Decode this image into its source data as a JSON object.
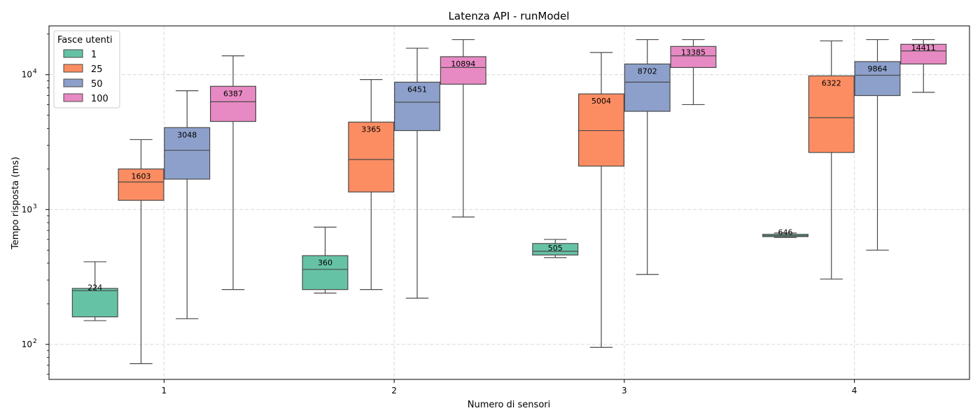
{
  "chart_data": {
    "type": "box",
    "title": "Latenza API - runModel",
    "xlabel": "Numero di sensori",
    "ylabel": "Tempo risposta (ms)",
    "yscale": "log",
    "ylim": [
      55,
      23000
    ],
    "ytick_labels": [
      {
        "value": 100,
        "base": "10",
        "exp": "2"
      },
      {
        "value": 1000,
        "base": "10",
        "exp": "3"
      },
      {
        "value": 10000,
        "base": "10",
        "exp": "4"
      }
    ],
    "categories": [
      "1",
      "2",
      "3",
      "4"
    ],
    "grid": true,
    "legend": {
      "title": "Fasce utenti",
      "placement": "top-left"
    },
    "series": [
      {
        "name": "1",
        "color": "#66c2a5",
        "boxes": [
          {
            "min": 150,
            "q1": 160,
            "median": 250,
            "q3": 260,
            "max": 410,
            "label": "224"
          },
          {
            "min": 240,
            "q1": 255,
            "median": 360,
            "q3": 455,
            "max": 740,
            "label": "360"
          },
          {
            "min": 440,
            "q1": 460,
            "median": 490,
            "q3": 560,
            "max": 600,
            "label": "505"
          },
          {
            "min": 620,
            "q1": 630,
            "median": 640,
            "q3": 655,
            "max": 670,
            "label": "646"
          }
        ]
      },
      {
        "name": "25",
        "color": "#fc8d62",
        "boxes": [
          {
            "min": 72,
            "q1": 1170,
            "median": 1600,
            "q3": 2000,
            "max": 3300,
            "label": "1603"
          },
          {
            "min": 255,
            "q1": 1350,
            "median": 2350,
            "q3": 4450,
            "max": 9200,
            "label": "3365"
          },
          {
            "min": 95,
            "q1": 2100,
            "median": 3850,
            "q3": 7200,
            "max": 14600,
            "label": "5004"
          },
          {
            "min": 305,
            "q1": 2650,
            "median": 4800,
            "q3": 9800,
            "max": 17800,
            "label": "6322"
          }
        ]
      },
      {
        "name": "50",
        "color": "#8da0cb",
        "boxes": [
          {
            "min": 155,
            "q1": 1680,
            "median": 2750,
            "q3": 4050,
            "max": 7600,
            "label": "3048"
          },
          {
            "min": 220,
            "q1": 3850,
            "median": 6250,
            "q3": 8800,
            "max": 15700,
            "label": "6451"
          },
          {
            "min": 330,
            "q1": 5350,
            "median": 8800,
            "q3": 12000,
            "max": 18200,
            "label": "8702"
          },
          {
            "min": 500,
            "q1": 7000,
            "median": 9900,
            "q3": 12500,
            "max": 18200,
            "label": "9864"
          }
        ]
      },
      {
        "name": "100",
        "color": "#e78ac3",
        "boxes": [
          {
            "min": 255,
            "q1": 4500,
            "median": 6300,
            "q3": 8200,
            "max": 13800,
            "label": "6387"
          },
          {
            "min": 880,
            "q1": 8500,
            "median": 11300,
            "q3": 13600,
            "max": 18200,
            "label": "10894"
          },
          {
            "min": 6000,
            "q1": 11300,
            "median": 13800,
            "q3": 16200,
            "max": 18200,
            "label": "13385"
          },
          {
            "min": 7400,
            "q1": 12000,
            "median": 15000,
            "q3": 16800,
            "max": 18200,
            "label": "14411"
          }
        ]
      }
    ]
  }
}
